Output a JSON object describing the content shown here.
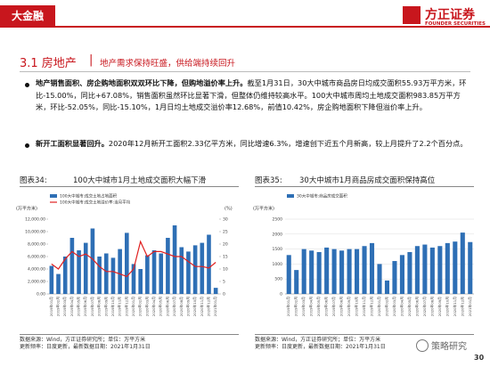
{
  "header": {
    "section": "大金融",
    "logo_cn": "方正证券",
    "logo_en": "FOUNDER SECURITIES"
  },
  "title": {
    "number": "3.1 房地产",
    "separator": "|",
    "text": "地产需求保持旺盛，供给端持续回升"
  },
  "bullets": [
    {
      "bold": "地产销售面积、房企购地面积双双环比下降，但购地溢价率上升。",
      "text": "截至1月31日，30大中城市商品房日均成交面积55.93万平方米，环比-15.00%，同比+67.08%，销售面积虽然环比显著下滑，但整体仍维持较高水平。100大中城市周均土地成交面积983.85万平方米，环比-52.05%，同比-15.10%，1月日均土地成交溢价率12.68%，前值10.42%，房企购地面积下降但溢价率上升。"
    },
    {
      "bold": "新开工面积显著回升。",
      "text": "2020年12月新开工面积2.33亿平方米，同比增速6.3%，增速创下近五个月新高，较上月提升了2.2个百分点。"
    }
  ],
  "chart_data": [
    {
      "type": "bar",
      "label": "图表34:",
      "title": "100大中城市1月土地成交面积大幅下滑",
      "y_label": "(万平方米)",
      "y2_label": "(%)",
      "categories": [
        "2019年01月",
        "2019年02月",
        "2019年03月",
        "2019年04月",
        "2019年05月",
        "2019年06月",
        "2019年07月",
        "2019年08月",
        "2019年09月",
        "2019年10月",
        "2019年11月",
        "2019年12月",
        "2020年01月",
        "2020年02月",
        "2020年03月",
        "2020年04月",
        "2020年05月",
        "2020年06月",
        "2020年07月",
        "2020年08月",
        "2020年09月",
        "2020年10月",
        "2020年11月",
        "2020年12月",
        "2021年01月"
      ],
      "series": [
        {
          "name": "100大中城市:成交土地占地面积",
          "type": "bar",
          "color": "#2e6fb5",
          "values": [
            4500,
            3200,
            6000,
            9000,
            7000,
            8200,
            10500,
            6000,
            6500,
            5800,
            7200,
            9800,
            4800,
            4000,
            6200,
            7000,
            6500,
            9000,
            11000,
            7500,
            6800,
            7800,
            8200,
            9500,
            983.85
          ]
        },
        {
          "name": "100大中城市:成交土地溢价率:当月平均",
          "type": "line",
          "axis": "y2",
          "color": "#e02020",
          "values": [
            12,
            10,
            14,
            17,
            15,
            16,
            14,
            11,
            9,
            9,
            8,
            7,
            10,
            21,
            15,
            17,
            17,
            16,
            15,
            15,
            13,
            11,
            11,
            10.42,
            12.68
          ]
        }
      ],
      "ylim": [
        0,
        12000
      ],
      "yticks": [
        {
          "value": 0,
          "label": "0.00"
        },
        {
          "value": 2000,
          "label": "2,000.00"
        },
        {
          "value": 4000,
          "label": "4,000.00"
        },
        {
          "value": 6000,
          "label": "6,000.00"
        },
        {
          "value": 8000,
          "label": "8,000.00"
        },
        {
          "value": 10000,
          "label": "10,000.00"
        },
        {
          "value": 12000,
          "label": "12,000.00"
        }
      ],
      "y2lim": [
        0,
        30
      ],
      "y2ticks": [
        0,
        5,
        10,
        15,
        20,
        25,
        30
      ],
      "grid": false,
      "source": [
        "数据来源：Wind，方正证券研究所；单位：万平方米",
        "更新频率：日度更新，最新数据日期：2021年1月31日"
      ]
    },
    {
      "type": "bar",
      "label": "图表35:",
      "title": "30大中城市1月商品房成交面积保持高位",
      "y_label": "(万平方米)",
      "categories": [
        "2019年01月",
        "2019年02月",
        "2019年03月",
        "2019年04月",
        "2019年05月",
        "2019年06月",
        "2019年07月",
        "2019年08月",
        "2019年09月",
        "2019年10月",
        "2019年11月",
        "2019年12月",
        "2020年01月",
        "2020年02月",
        "2020年03月",
        "2020年04月",
        "2020年05月",
        "2020年06月",
        "2020年07月",
        "2020年08月",
        "2020年09月",
        "2020年10月",
        "2020年11月",
        "2020年12月",
        "2021年01月"
      ],
      "series": [
        {
          "name": "30大中城市:商品房成交面积",
          "type": "bar",
          "color": "#2e6fb5",
          "values": [
            1300,
            800,
            1500,
            1450,
            1400,
            1550,
            1500,
            1450,
            1500,
            1500,
            1600,
            1700,
            1000,
            450,
            1100,
            1300,
            1400,
            1600,
            1650,
            1550,
            1600,
            1700,
            1750,
            2050,
            1734
          ]
        }
      ],
      "ylim": [
        0,
        2500
      ],
      "yticks": [
        0,
        500,
        1000,
        1500,
        2000,
        2500
      ],
      "grid": true,
      "source": [
        "数据来源：Wind，方正证券研究所；单位：万平方米",
        "更新频率：日度更新，最新数据日期：2021年1月31日"
      ]
    }
  ],
  "watermark": "策略研究",
  "page_number": "30"
}
